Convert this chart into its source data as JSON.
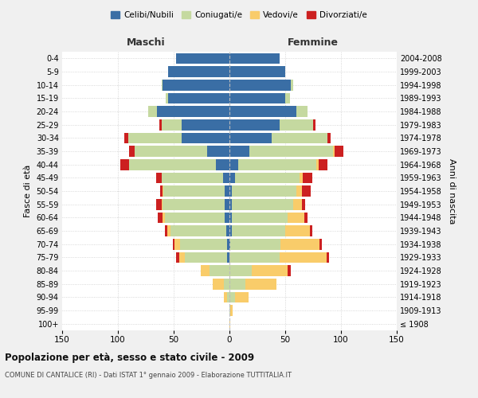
{
  "age_groups": [
    "100+",
    "95-99",
    "90-94",
    "85-89",
    "80-84",
    "75-79",
    "70-74",
    "65-69",
    "60-64",
    "55-59",
    "50-54",
    "45-49",
    "40-44",
    "35-39",
    "30-34",
    "25-29",
    "20-24",
    "15-19",
    "10-14",
    "5-9",
    "0-4"
  ],
  "birth_years": [
    "≤ 1908",
    "1909-1913",
    "1914-1918",
    "1919-1923",
    "1924-1928",
    "1929-1933",
    "1934-1938",
    "1939-1943",
    "1944-1948",
    "1949-1953",
    "1954-1958",
    "1959-1963",
    "1964-1968",
    "1969-1973",
    "1974-1978",
    "1979-1983",
    "1984-1988",
    "1989-1993",
    "1994-1998",
    "1999-2003",
    "2004-2008"
  ],
  "maschi": {
    "celibi": [
      0,
      0,
      0,
      0,
      0,
      2,
      2,
      3,
      4,
      4,
      4,
      6,
      12,
      20,
      43,
      43,
      65,
      55,
      60,
      55,
      48
    ],
    "coniugati": [
      0,
      0,
      2,
      5,
      18,
      38,
      42,
      50,
      54,
      56,
      55,
      55,
      78,
      65,
      48,
      18,
      8,
      2,
      1,
      0,
      0
    ],
    "vedovi": [
      0,
      0,
      3,
      10,
      8,
      5,
      5,
      3,
      2,
      1,
      1,
      0,
      0,
      0,
      0,
      0,
      0,
      0,
      0,
      0,
      0
    ],
    "divorziati": [
      0,
      0,
      0,
      0,
      0,
      3,
      2,
      2,
      4,
      5,
      2,
      5,
      8,
      5,
      3,
      2,
      0,
      0,
      0,
      0,
      0
    ]
  },
  "femmine": {
    "nubili": [
      0,
      0,
      0,
      0,
      0,
      0,
      1,
      2,
      2,
      2,
      2,
      5,
      8,
      18,
      38,
      45,
      60,
      50,
      55,
      50,
      45
    ],
    "coniugate": [
      0,
      1,
      5,
      14,
      20,
      45,
      45,
      48,
      50,
      55,
      58,
      58,
      70,
      75,
      50,
      30,
      10,
      4,
      2,
      0,
      0
    ],
    "vedove": [
      1,
      2,
      12,
      28,
      32,
      42,
      35,
      22,
      15,
      8,
      5,
      3,
      2,
      1,
      0,
      0,
      0,
      0,
      0,
      0,
      0
    ],
    "divorziate": [
      0,
      0,
      0,
      0,
      3,
      2,
      2,
      2,
      3,
      3,
      8,
      8,
      8,
      8,
      3,
      2,
      0,
      0,
      0,
      0,
      0
    ]
  },
  "colors": {
    "celibi": "#3a6ea5",
    "coniugati": "#c5d9a0",
    "vedovi": "#f9cc6a",
    "divorziati": "#cc2020"
  },
  "title": "Popolazione per età, sesso e stato civile - 2009",
  "subtitle": "COMUNE DI CANTALICE (RI) - Dati ISTAT 1° gennaio 2009 - Elaborazione TUTTITALIA.IT",
  "ylabel_left": "Fasce di età",
  "ylabel_right": "Anni di nascita",
  "xlabel_maschi": "Maschi",
  "xlabel_femmine": "Femmine",
  "legend_labels": [
    "Celibi/Nubili",
    "Coniugati/e",
    "Vedovi/e",
    "Divorziati/e"
  ],
  "xlim": 150,
  "bg_color": "#f0f0f0",
  "plot_bg": "#ffffff"
}
